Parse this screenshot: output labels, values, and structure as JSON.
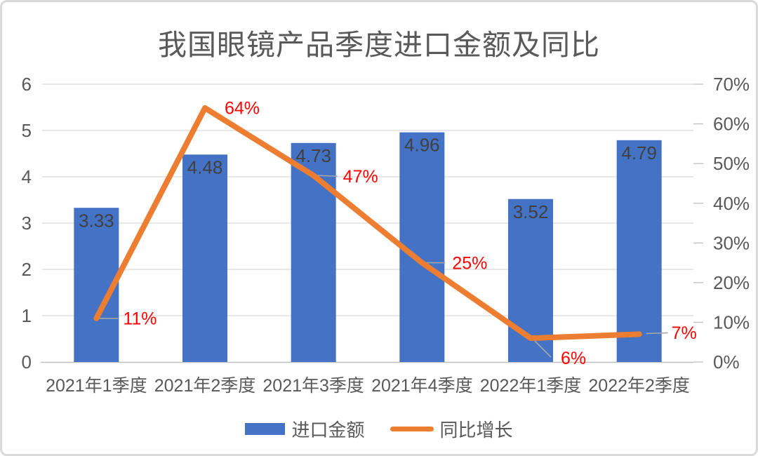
{
  "chart_data": {
    "type": "combo-bar-line",
    "title": "我国眼镜产品季度进口金额及同比",
    "categories": [
      "2021年1季度",
      "2021年2季度",
      "2021年3季度",
      "2021年4季度",
      "2022年1季度",
      "2022年2季度"
    ],
    "series": [
      {
        "name": "进口金额",
        "type": "bar",
        "axis": "left",
        "color": "#4472C4",
        "values": [
          3.33,
          4.48,
          4.73,
          4.96,
          3.52,
          4.79
        ],
        "data_labels": [
          "3.33",
          "4.48",
          "4.73",
          "4.96",
          "3.52",
          "4.79"
        ]
      },
      {
        "name": "同比增长",
        "type": "line",
        "axis": "right",
        "color": "#ED7D31",
        "values_percent": [
          11,
          64,
          47,
          25,
          6,
          7
        ],
        "data_labels": [
          "11%",
          "64%",
          "47%",
          "25%",
          "6%",
          "7%"
        ]
      }
    ],
    "left_axis": {
      "min": 0,
      "max": 6,
      "ticks": [
        "0",
        "1",
        "2",
        "3",
        "4",
        "5",
        "6"
      ]
    },
    "right_axis": {
      "min_percent": 0,
      "max_percent": 70,
      "ticks": [
        "0%",
        "10%",
        "20%",
        "30%",
        "40%",
        "50%",
        "60%",
        "70%"
      ]
    },
    "grid": true,
    "legend_position": "bottom",
    "colors": {
      "bar": "#4472C4",
      "line": "#ED7D31",
      "percent_labels": "#FF0000",
      "bar_value_labels": "#404040",
      "axis_text": "#595959",
      "gridline": "#D9D9D9",
      "axis_line": "#BFBFBF",
      "leader_line": "#A6A6A6"
    }
  }
}
